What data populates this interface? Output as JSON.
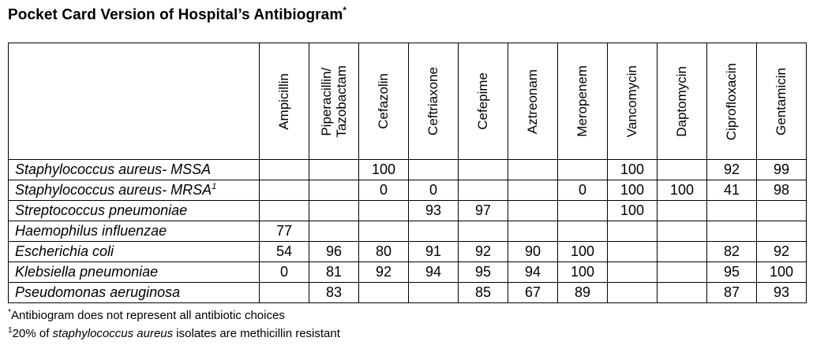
{
  "title": {
    "text": "Pocket Card Version of Hospital’s Antibiogram",
    "marker": "*"
  },
  "table": {
    "organism_column_header": "",
    "antibiotics": [
      "Ampicillin",
      "Piperacillin/\nTazobactam",
      "Cefazolin",
      "Ceftriaxone",
      "Cefepime",
      "Aztreonam",
      "Meropenem",
      "Vancomycin",
      "Daptomycin",
      "Ciprofloxacin",
      "Gentamicin"
    ],
    "rows": [
      {
        "organism": "Staphylococcus aureus- MSSA",
        "marker": "",
        "values": [
          "",
          "",
          "100",
          "",
          "",
          "",
          "",
          "100",
          "",
          "92",
          "99"
        ]
      },
      {
        "organism": "Staphylococcus aureus- MRSA",
        "marker": "1",
        "values": [
          "",
          "",
          "0",
          "0",
          "",
          "",
          "0",
          "100",
          "100",
          "41",
          "98"
        ]
      },
      {
        "organism": "Streptococcus pneumoniae",
        "marker": "",
        "values": [
          "",
          "",
          "",
          "93",
          "97",
          "",
          "",
          "100",
          "",
          "",
          ""
        ]
      },
      {
        "organism": "Haemophilus influenzae",
        "marker": "",
        "values": [
          "77",
          "",
          "",
          "",
          "",
          "",
          "",
          "",
          "",
          "",
          ""
        ]
      },
      {
        "organism": "Escherichia coli",
        "marker": "",
        "values": [
          "54",
          "96",
          "80",
          "91",
          "92",
          "90",
          "100",
          "",
          "",
          "82",
          "92"
        ]
      },
      {
        "organism": "Klebsiella pneumoniae",
        "marker": "",
        "values": [
          "0",
          "81",
          "92",
          "94",
          "95",
          "94",
          "100",
          "",
          "",
          "95",
          "100"
        ]
      },
      {
        "organism": "Pseudomonas aeruginosa",
        "marker": "",
        "values": [
          "",
          "83",
          "",
          "",
          "85",
          "67",
          "89",
          "",
          "",
          "87",
          "93"
        ]
      }
    ]
  },
  "footnotes": [
    {
      "marker": "*",
      "prefix": "Antibiogram does not represent all antibiotic choices",
      "italic": "",
      "suffix": ""
    },
    {
      "marker": "1",
      "prefix": "20% of ",
      "italic": "staphylococcus aureus",
      "suffix": " isolates are methicillin resistant"
    }
  ],
  "colors": {
    "text": "#000000",
    "border": "#000000",
    "background": "#ffffff"
  }
}
